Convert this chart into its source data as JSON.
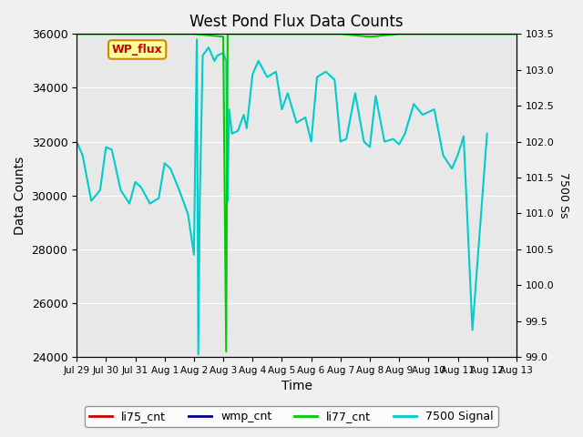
{
  "title": "West Pond Flux Data Counts",
  "xlabel": "Time",
  "ylabel": "Data Counts",
  "ylabel_right": "7500 Ss",
  "ylim_left": [
    24000,
    36000
  ],
  "ylim_right": [
    99.0,
    103.5
  ],
  "background_color": "#f0f0f0",
  "plot_bg_color": "#e8e8e8",
  "x_tick_labels": [
    "Jul 29",
    "Jul 30",
    "Jul 31",
    "Aug 1",
    "Aug 2",
    "Aug 3",
    "Aug 4",
    "Aug 5",
    "Aug 6",
    "Aug 7",
    "Aug 8",
    "Aug 9",
    "Aug 10",
    "Aug 11",
    "Aug 12",
    "Aug 13"
  ],
  "wp_flux_box": {
    "label": "WP_flux",
    "facecolor": "#ffff99",
    "edgecolor": "#cc8800"
  },
  "legend_entries": [
    {
      "label": "li75_cnt",
      "color": "#cc0000",
      "lw": 2
    },
    {
      "label": "wmp_cnt",
      "color": "#000088",
      "lw": 2
    },
    {
      "label": "li77_cnt",
      "color": "#00cc00",
      "lw": 2
    },
    {
      "label": "7500 Signal",
      "color": "#00cccc",
      "lw": 2
    }
  ],
  "li77_cnt_x": [
    0,
    1,
    2,
    3,
    4,
    5,
    5.1,
    5.15,
    5.5,
    6,
    7,
    8,
    9,
    10,
    11,
    12,
    13,
    14,
    15
  ],
  "li77_cnt_y": [
    36000,
    36000,
    36000,
    36000,
    36000,
    35900,
    24200,
    36000,
    36000,
    36000,
    36000,
    36000,
    36000,
    35900,
    36000,
    36000,
    36000,
    36000,
    36000
  ],
  "signal_data_x": [
    0,
    0.2,
    0.5,
    0.8,
    1.0,
    1.2,
    1.5,
    1.8,
    2.0,
    2.2,
    2.5,
    2.8,
    3.0,
    3.2,
    3.5,
    3.8,
    4.0,
    4.1,
    4.15,
    4.2,
    4.3,
    4.5,
    4.7,
    4.8,
    5.0,
    5.1,
    5.15,
    5.2,
    5.3,
    5.5,
    5.7,
    5.8,
    6.0,
    6.2,
    6.5,
    6.8,
    7.0,
    7.2,
    7.5,
    7.8,
    8.0,
    8.2,
    8.5,
    8.8,
    9.0,
    9.2,
    9.5,
    9.8,
    10.0,
    10.2,
    10.5,
    10.8,
    11.0,
    11.2,
    11.5,
    11.8,
    12.0,
    12.2,
    12.5,
    12.8,
    13.0,
    13.2,
    13.5,
    14.0
  ],
  "signal_data_y": [
    32000,
    31500,
    29800,
    30200,
    31800,
    31700,
    30200,
    29700,
    30500,
    30300,
    29700,
    29900,
    31200,
    31000,
    30200,
    29300,
    27800,
    35800,
    24100,
    29800,
    35200,
    35500,
    35000,
    35200,
    35300,
    35000,
    29800,
    33200,
    32300,
    32400,
    33000,
    32500,
    34500,
    35000,
    34400,
    34600,
    33200,
    33800,
    32700,
    32900,
    32000,
    34400,
    34600,
    34300,
    32000,
    32100,
    33800,
    32000,
    31800,
    33700,
    32000,
    32100,
    31900,
    32300,
    33400,
    33000,
    33100,
    33200,
    31500,
    31000,
    31500,
    32200,
    25000,
    32300
  ]
}
